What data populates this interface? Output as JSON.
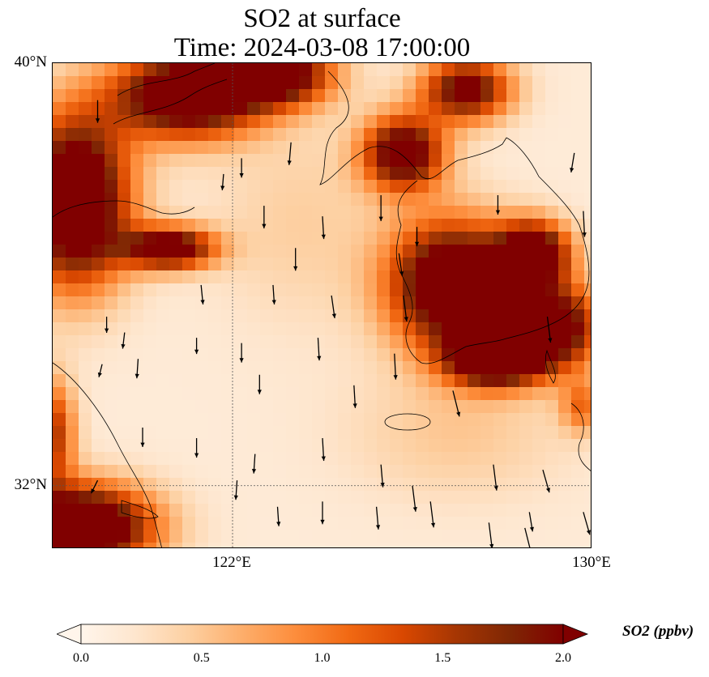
{
  "title": {
    "line1": "SO2 at surface",
    "line2": "Time: 2024-03-08 17:00:00"
  },
  "map": {
    "lon_range": [
      118,
      130
    ],
    "lat_range": [
      30.8,
      40
    ],
    "lat_labels": [
      {
        "lat": 40,
        "text": "40°N"
      },
      {
        "lat": 32,
        "text": "32°N"
      }
    ],
    "lon_labels": [
      {
        "lon": 122,
        "text": "122°E"
      },
      {
        "lon": 130,
        "text": "130°E"
      }
    ],
    "gridlines": {
      "lon": 122,
      "lat": 32
    },
    "hotspots": [
      {
        "lon": 121.0,
        "lat": 39.4,
        "rx": 1.6,
        "ry": 0.8,
        "v": 2.6
      },
      {
        "lon": 123.0,
        "lat": 39.8,
        "rx": 1.2,
        "ry": 0.6,
        "v": 2.2
      },
      {
        "lon": 118.5,
        "lat": 37.4,
        "rx": 1.2,
        "ry": 1.6,
        "v": 2.7
      },
      {
        "lon": 120.6,
        "lat": 36.5,
        "rx": 1.0,
        "ry": 0.4,
        "v": 2.2
      },
      {
        "lon": 125.8,
        "lat": 38.3,
        "rx": 0.9,
        "ry": 0.7,
        "v": 2.2
      },
      {
        "lon": 127.2,
        "lat": 39.5,
        "rx": 1.0,
        "ry": 0.6,
        "v": 2.0
      },
      {
        "lon": 126.9,
        "lat": 35.8,
        "rx": 1.4,
        "ry": 1.2,
        "v": 2.6
      },
      {
        "lon": 128.7,
        "lat": 36.4,
        "rx": 0.8,
        "ry": 0.6,
        "v": 2.3
      },
      {
        "lon": 129.0,
        "lat": 35.0,
        "rx": 1.2,
        "ry": 0.8,
        "v": 2.4
      },
      {
        "lon": 127.8,
        "lat": 34.4,
        "rx": 1.0,
        "ry": 0.5,
        "v": 2.4
      },
      {
        "lon": 118.6,
        "lat": 31.2,
        "rx": 1.6,
        "ry": 0.8,
        "v": 2.8
      },
      {
        "lon": 118.0,
        "lat": 33.0,
        "rx": 0.5,
        "ry": 1.0,
        "v": 1.4
      },
      {
        "lon": 129.8,
        "lat": 33.5,
        "rx": 0.5,
        "ry": 0.5,
        "v": 0.9
      },
      {
        "lon": 123.5,
        "lat": 37.0,
        "rx": 2.0,
        "ry": 2.0,
        "v": 0.3
      },
      {
        "lon": 127.0,
        "lat": 33.0,
        "rx": 2.5,
        "ry": 1.3,
        "v": 0.35
      }
    ],
    "wind_arrows": [
      [
        119.0,
        39.3,
        0.0,
        -0.35
      ],
      [
        122.2,
        38.2,
        0.0,
        -0.3
      ],
      [
        123.3,
        38.5,
        -0.03,
        -0.35
      ],
      [
        121.8,
        37.9,
        -0.02,
        -0.25
      ],
      [
        122.7,
        37.3,
        0.0,
        -0.35
      ],
      [
        124.0,
        37.1,
        0.02,
        -0.35
      ],
      [
        125.3,
        37.5,
        0.0,
        -0.4
      ],
      [
        123.4,
        36.5,
        0.0,
        -0.35
      ],
      [
        125.7,
        36.4,
        0.05,
        -0.35
      ],
      [
        121.3,
        35.8,
        0.03,
        -0.3
      ],
      [
        122.9,
        35.8,
        0.02,
        -0.3
      ],
      [
        124.2,
        35.6,
        0.05,
        -0.35
      ],
      [
        125.8,
        35.6,
        0.05,
        -0.4
      ],
      [
        119.2,
        35.2,
        0.0,
        -0.25
      ],
      [
        119.6,
        34.9,
        -0.03,
        -0.25
      ],
      [
        121.2,
        34.8,
        0.0,
        -0.25
      ],
      [
        122.2,
        34.7,
        0.0,
        -0.3
      ],
      [
        123.9,
        34.8,
        0.02,
        -0.35
      ],
      [
        125.6,
        34.5,
        0.02,
        -0.4
      ],
      [
        119.1,
        34.3,
        -0.05,
        -0.2
      ],
      [
        119.9,
        34.4,
        -0.02,
        -0.3
      ],
      [
        122.6,
        34.1,
        0.0,
        -0.3
      ],
      [
        124.7,
        33.9,
        0.02,
        -0.35
      ],
      [
        126.9,
        33.8,
        0.1,
        -0.4
      ],
      [
        120.0,
        33.1,
        0.0,
        -0.3
      ],
      [
        121.2,
        32.9,
        0.0,
        -0.3
      ],
      [
        122.5,
        32.6,
        -0.02,
        -0.3
      ],
      [
        124.0,
        32.9,
        0.02,
        -0.35
      ],
      [
        125.3,
        32.4,
        0.03,
        -0.35
      ],
      [
        126.0,
        32.0,
        0.05,
        -0.4
      ],
      [
        127.8,
        32.4,
        0.05,
        -0.4
      ],
      [
        128.9,
        32.3,
        0.1,
        -0.35
      ],
      [
        119.0,
        32.1,
        -0.1,
        -0.2
      ],
      [
        122.1,
        32.1,
        -0.02,
        -0.3
      ],
      [
        123.0,
        31.6,
        0.02,
        -0.3
      ],
      [
        124.0,
        31.7,
        0.0,
        -0.35
      ],
      [
        125.2,
        31.6,
        0.03,
        -0.35
      ],
      [
        126.4,
        31.7,
        0.05,
        -0.4
      ],
      [
        127.7,
        31.3,
        0.05,
        -0.4
      ],
      [
        128.5,
        31.2,
        0.1,
        -0.4
      ],
      [
        129.8,
        31.5,
        0.1,
        -0.35
      ],
      [
        125.8,
        30.8,
        0.05,
        -0.3
      ],
      [
        128.6,
        31.5,
        0.05,
        -0.3
      ],
      [
        129.6,
        38.3,
        -0.05,
        -0.3
      ],
      [
        129.8,
        37.2,
        0.02,
        -0.4
      ],
      [
        127.9,
        37.5,
        0.0,
        -0.3
      ],
      [
        126.1,
        36.9,
        0.0,
        -0.3
      ],
      [
        129.0,
        35.2,
        0.05,
        -0.4
      ]
    ]
  },
  "colorbar": {
    "label": "SO2 (ppbv)",
    "min": 0.0,
    "max": 2.0,
    "ticks": [
      "0.0",
      "0.5",
      "1.0",
      "1.5",
      "2.0"
    ],
    "colors": [
      "#fff5eb",
      "#fee6ce",
      "#fdd0a2",
      "#fdae6b",
      "#fd8d3c",
      "#f16913",
      "#d94801",
      "#a63603",
      "#7f2704",
      "#800000"
    ]
  }
}
